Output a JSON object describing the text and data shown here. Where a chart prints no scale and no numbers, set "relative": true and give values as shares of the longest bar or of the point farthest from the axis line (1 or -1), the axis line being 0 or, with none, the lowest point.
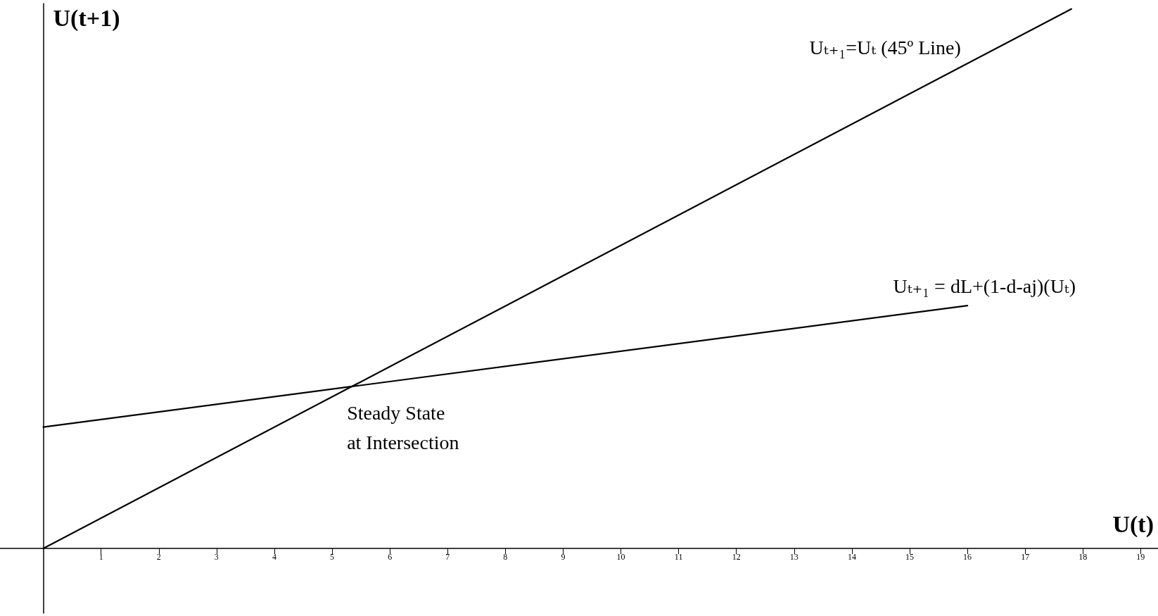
{
  "chart_data": {
    "type": "line",
    "relative": true,
    "xlabel": "U(t)",
    "ylabel": "U(t+1)",
    "xlim": [
      -0.75,
      19.3
    ],
    "xticks": [
      1,
      2,
      3,
      4,
      5,
      6,
      7,
      8,
      9,
      10,
      11,
      12,
      13,
      14,
      15,
      16,
      17,
      18,
      19
    ],
    "series": [
      {
        "name": "Uₜ₊₁=Uₜ (45º Line)",
        "color": "#000000",
        "x": [
          0,
          17.8
        ],
        "values": [
          0,
          1
        ]
      },
      {
        "name": "Uₜ₊₁ = dL+(1-d-aj)(Uₜ)",
        "color": "#000000",
        "x": [
          0,
          16
        ],
        "values": [
          0.225,
          0.45
        ]
      }
    ],
    "annotations": [
      {
        "text": "Steady State\nat Intersection",
        "x": 5.33,
        "y": 0.3
      }
    ],
    "grid": false,
    "legend": false,
    "marker": "none",
    "line_style": "solid"
  }
}
